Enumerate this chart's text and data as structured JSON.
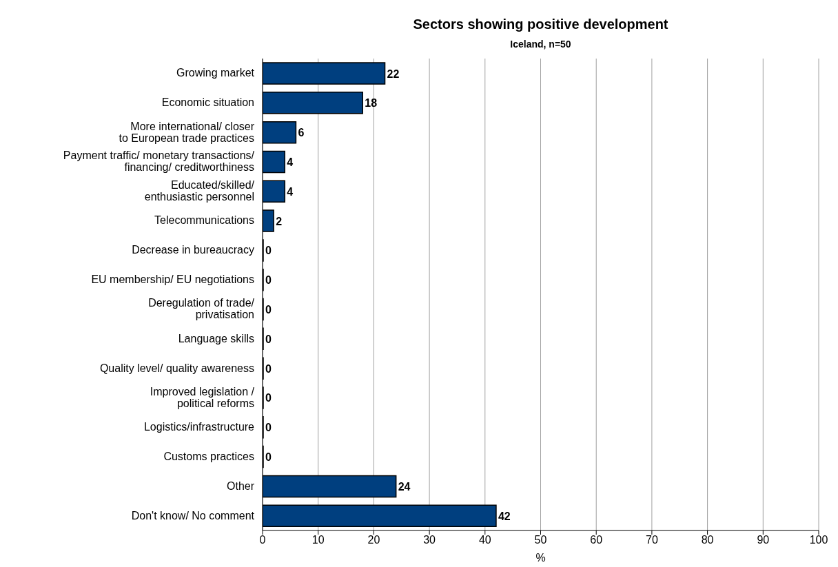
{
  "chart_data": {
    "type": "bar",
    "orientation": "horizontal",
    "title": "Sectors showing positive development",
    "subtitle": "Iceland, n=50",
    "xlabel": "%",
    "categories": [
      "Growing market",
      "Economic situation",
      "More international/ closer\nto European trade practices",
      "Payment traffic/ monetary transactions/\nfinancing/ creditworthiness",
      "Educated/skilled/\nenthusiastic personnel",
      "Telecommunications",
      "Decrease in bureaucracy",
      "EU membership/ EU negotiations",
      "Deregulation of trade/\nprivatisation",
      "Language skills",
      "Quality level/ quality awareness",
      "Improved legislation /\npolitical reforms",
      "Logistics/infrastructure",
      "Customs practices",
      "Other",
      "Don't know/ No comment"
    ],
    "values": [
      22,
      18,
      6,
      4,
      4,
      2,
      0,
      0,
      0,
      0,
      0,
      0,
      0,
      0,
      24,
      42
    ],
    "color": "#003f7f",
    "xlim": [
      0,
      100
    ],
    "xticks": [
      0,
      10,
      20,
      30,
      40,
      50,
      60,
      70,
      80,
      90,
      100
    ],
    "grid": "x",
    "data_labels": true
  }
}
